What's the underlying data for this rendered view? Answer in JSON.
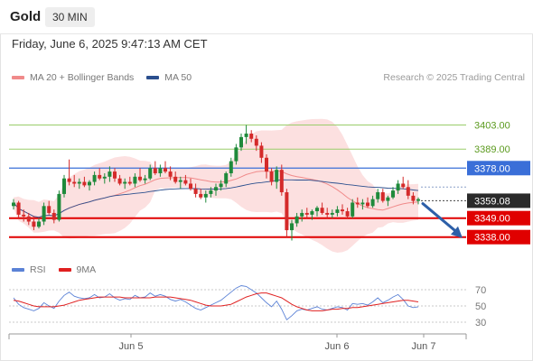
{
  "header": {
    "title": "Gold",
    "timeframe": "30 MIN"
  },
  "timestamp": "Friday, June 6, 2025 9:47:13 AM CET",
  "legend": [
    {
      "label": "MA 20 + Bollinger Bands",
      "color": "#f08a8a"
    },
    {
      "label": "MA 50",
      "color": "#2b4f8e"
    }
  ],
  "credit": "Research © 2025 Trading Central",
  "rsi_legend": [
    {
      "label": "RSI",
      "color": "#5b82d6"
    },
    {
      "label": "9MA",
      "color": "#e02020"
    }
  ],
  "colors": {
    "up": "#1f8a3b",
    "down": "#d42a2a",
    "band_fill": "#fbdada",
    "resistance": "#9acd6a",
    "resistance_label": "#5b9a1e",
    "pivot": "#3a6fd8",
    "support": "#e00000",
    "last": "#2a2a2a",
    "arrow": "#2d5fa8"
  },
  "chart_data": {
    "type": "candlestick",
    "ylim": [
      3330,
      3420
    ],
    "x_ticks": [
      "Jun 5",
      "Jun 6",
      "Jun 7"
    ],
    "levels": [
      {
        "value": 3403.0,
        "label": "3403.00",
        "kind": "resistance"
      },
      {
        "value": 3389.0,
        "label": "3389.00",
        "kind": "resistance"
      },
      {
        "value": 3378.0,
        "label": "3378.00",
        "kind": "pivot"
      },
      {
        "value": 3349.0,
        "label": "3349.00",
        "kind": "support"
      },
      {
        "value": 3338.0,
        "label": "3338.00",
        "kind": "support"
      }
    ],
    "last_price": {
      "value": 3359.08,
      "label": "3359.08"
    },
    "forecast_arrow": {
      "from": 3359,
      "to": 3339
    },
    "candles": [
      [
        3356,
        3360,
        3354,
        3358
      ],
      [
        3358,
        3359,
        3349,
        3351
      ],
      [
        3351,
        3354,
        3347,
        3350
      ],
      [
        3350,
        3352,
        3345,
        3347
      ],
      [
        3347,
        3350,
        3342,
        3344
      ],
      [
        3344,
        3349,
        3343,
        3347
      ],
      [
        3347,
        3358,
        3345,
        3356
      ],
      [
        3356,
        3359,
        3351,
        3352
      ],
      [
        3352,
        3354,
        3346,
        3348
      ],
      [
        3348,
        3365,
        3347,
        3363
      ],
      [
        3363,
        3374,
        3361,
        3372
      ],
      [
        3372,
        3383,
        3368,
        3370
      ],
      [
        3370,
        3374,
        3367,
        3369
      ],
      [
        3369,
        3372,
        3366,
        3370
      ],
      [
        3370,
        3373,
        3367,
        3368
      ],
      [
        3368,
        3371,
        3365,
        3370
      ],
      [
        3370,
        3376,
        3368,
        3374
      ],
      [
        3374,
        3378,
        3371,
        3372
      ],
      [
        3372,
        3375,
        3369,
        3373
      ],
      [
        3373,
        3379,
        3370,
        3376
      ],
      [
        3376,
        3378,
        3370,
        3372
      ],
      [
        3372,
        3374,
        3368,
        3369
      ],
      [
        3369,
        3372,
        3366,
        3370
      ],
      [
        3370,
        3373,
        3368,
        3369
      ],
      [
        3369,
        3375,
        3367,
        3373
      ],
      [
        3373,
        3378,
        3370,
        3371
      ],
      [
        3371,
        3374,
        3369,
        3372
      ],
      [
        3372,
        3380,
        3371,
        3378
      ],
      [
        3378,
        3382,
        3374,
        3375
      ],
      [
        3375,
        3380,
        3373,
        3378
      ],
      [
        3378,
        3382,
        3375,
        3376
      ],
      [
        3376,
        3379,
        3371,
        3373
      ],
      [
        3373,
        3376,
        3369,
        3370
      ],
      [
        3370,
        3373,
        3366,
        3371
      ],
      [
        3371,
        3374,
        3368,
        3369
      ],
      [
        3369,
        3372,
        3365,
        3366
      ],
      [
        3366,
        3369,
        3361,
        3363
      ],
      [
        3363,
        3366,
        3360,
        3361
      ],
      [
        3361,
        3365,
        3358,
        3363
      ],
      [
        3363,
        3367,
        3361,
        3365
      ],
      [
        3365,
        3369,
        3362,
        3367
      ],
      [
        3367,
        3371,
        3365,
        3369
      ],
      [
        3369,
        3376,
        3367,
        3375
      ],
      [
        3375,
        3384,
        3373,
        3382
      ],
      [
        3382,
        3392,
        3380,
        3390
      ],
      [
        3390,
        3398,
        3388,
        3396
      ],
      [
        3396,
        3403,
        3392,
        3398
      ],
      [
        3398,
        3400,
        3393,
        3395
      ],
      [
        3395,
        3397,
        3388,
        3391
      ],
      [
        3391,
        3393,
        3381,
        3384
      ],
      [
        3384,
        3386,
        3372,
        3376
      ],
      [
        3376,
        3378,
        3368,
        3370
      ],
      [
        3370,
        3379,
        3366,
        3377
      ],
      [
        3377,
        3380,
        3362,
        3364
      ],
      [
        3364,
        3366,
        3338,
        3342
      ],
      [
        3342,
        3348,
        3336,
        3346
      ],
      [
        3346,
        3352,
        3344,
        3350
      ],
      [
        3350,
        3354,
        3347,
        3352
      ],
      [
        3352,
        3355,
        3349,
        3351
      ],
      [
        3351,
        3354,
        3348,
        3353
      ],
      [
        3353,
        3356,
        3350,
        3355
      ],
      [
        3355,
        3358,
        3351,
        3352
      ],
      [
        3352,
        3355,
        3349,
        3351
      ],
      [
        3351,
        3354,
        3349,
        3352
      ],
      [
        3352,
        3356,
        3350,
        3354
      ],
      [
        3354,
        3357,
        3351,
        3353
      ],
      [
        3353,
        3355,
        3349,
        3350
      ],
      [
        3350,
        3360,
        3349,
        3358
      ],
      [
        3358,
        3361,
        3355,
        3357
      ],
      [
        3357,
        3360,
        3354,
        3358
      ],
      [
        3358,
        3361,
        3355,
        3356
      ],
      [
        3356,
        3362,
        3355,
        3360
      ],
      [
        3360,
        3366,
        3358,
        3364
      ],
      [
        3364,
        3366,
        3358,
        3359
      ],
      [
        3359,
        3362,
        3356,
        3361
      ],
      [
        3361,
        3367,
        3360,
        3365
      ],
      [
        3365,
        3371,
        3363,
        3369
      ],
      [
        3369,
        3373,
        3366,
        3367
      ],
      [
        3367,
        3371,
        3360,
        3362
      ],
      [
        3362,
        3364,
        3357,
        3359
      ],
      [
        3359,
        3361,
        3357,
        3360
      ]
    ],
    "rsi": {
      "ylim": [
        20,
        80
      ],
      "ticks": [
        70,
        50,
        30
      ],
      "rsi": [
        60,
        52,
        48,
        46,
        44,
        47,
        54,
        50,
        47,
        56,
        63,
        67,
        62,
        60,
        59,
        60,
        64,
        60,
        61,
        65,
        60,
        57,
        59,
        58,
        63,
        60,
        61,
        66,
        62,
        64,
        62,
        58,
        56,
        58,
        55,
        51,
        47,
        45,
        48,
        51,
        54,
        57,
        62,
        67,
        72,
        75,
        74,
        70,
        66,
        60,
        54,
        49,
        56,
        46,
        33,
        38,
        44,
        46,
        45,
        47,
        49,
        46,
        45,
        47,
        49,
        48,
        45,
        53,
        52,
        53,
        51,
        55,
        60,
        54,
        57,
        61,
        64,
        58,
        50,
        48,
        49
      ],
      "ma": [
        57,
        56,
        54,
        52,
        50,
        49,
        49,
        49,
        49,
        50,
        51,
        53,
        55,
        57,
        58,
        59,
        60,
        61,
        61,
        61,
        61,
        61,
        60,
        60,
        60,
        60,
        60,
        60,
        61,
        61,
        61,
        61,
        60,
        59,
        58,
        57,
        55,
        53,
        51,
        50,
        50,
        50,
        51,
        52,
        55,
        58,
        61,
        63,
        65,
        66,
        66,
        64,
        62,
        60,
        56,
        52,
        49,
        47,
        45,
        44,
        44,
        44,
        45,
        46,
        46,
        47,
        47,
        48,
        48,
        49,
        50,
        51,
        52,
        53,
        54,
        55,
        56,
        57,
        57,
        56,
        55
      ]
    }
  }
}
